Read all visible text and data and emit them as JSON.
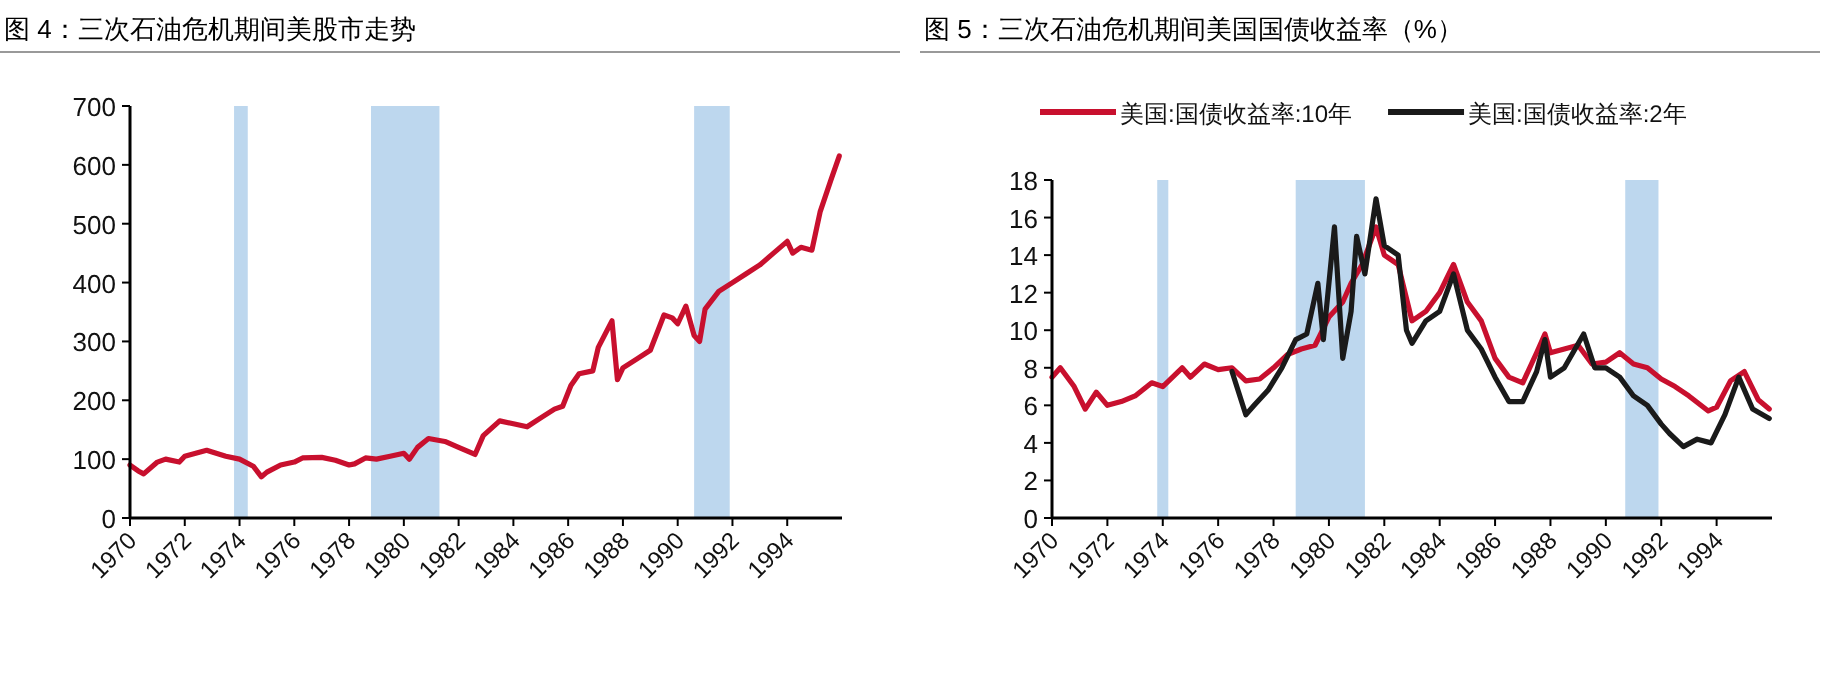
{
  "chart_data": [
    {
      "type": "line",
      "title": "图 4：三次石油危机期间美股市走势",
      "xlim": [
        1970,
        1996
      ],
      "xticks": [
        1970,
        1972,
        1974,
        1976,
        1978,
        1980,
        1982,
        1984,
        1986,
        1988,
        1990,
        1992,
        1994
      ],
      "ylim": [
        0,
        700
      ],
      "yticks": [
        0,
        100,
        200,
        300,
        400,
        500,
        600,
        700
      ],
      "grid": false,
      "legend": false,
      "bands": [
        {
          "axis": "x",
          "from": 1973.8,
          "to": 1974.3,
          "color": "#bdd7ee"
        },
        {
          "axis": "x",
          "from": 1978.8,
          "to": 1981.3,
          "color": "#bdd7ee"
        },
        {
          "axis": "x",
          "from": 1990.6,
          "to": 1991.9,
          "color": "#bdd7ee"
        }
      ],
      "series": [
        {
          "color": "#c8102e",
          "x": [
            1970,
            1970.3,
            1970.5,
            1971,
            1971.3,
            1971.8,
            1972,
            1972.8,
            1973,
            1973.5,
            1974,
            1974.5,
            1974.8,
            1975,
            1975.5,
            1976,
            1976.3,
            1977,
            1977.5,
            1978,
            1978.2,
            1978.6,
            1979,
            1979.5,
            1980,
            1980.2,
            1980.5,
            1980.9,
            1981.5,
            1982,
            1982.6,
            1982.9,
            1983.5,
            1984,
            1984.5,
            1985,
            1985.5,
            1985.8,
            1986.1,
            1986.4,
            1986.9,
            1987.1,
            1987.6,
            1987.8,
            1988,
            1988.5,
            1989,
            1989.5,
            1989.8,
            1990,
            1990.3,
            1990.6,
            1990.8,
            1991,
            1991.5,
            1992,
            1992.5,
            1993,
            1993.5,
            1994,
            1994.2,
            1994.5,
            1994.9,
            1995.2,
            1995.6,
            1995.9
          ],
          "values": [
            90,
            80,
            75,
            95,
            100,
            95,
            105,
            115,
            112,
            105,
            100,
            88,
            70,
            78,
            90,
            95,
            102,
            103,
            98,
            90,
            92,
            102,
            100,
            105,
            110,
            100,
            120,
            135,
            130,
            120,
            108,
            140,
            165,
            160,
            155,
            170,
            185,
            190,
            225,
            245,
            250,
            290,
            335,
            235,
            255,
            270,
            285,
            345,
            340,
            330,
            360,
            310,
            300,
            355,
            385,
            400,
            415,
            430,
            450,
            470,
            450,
            460,
            455,
            520,
            575,
            615
          ]
        }
      ]
    },
    {
      "type": "line",
      "title": "图 5：三次石油危机期间美国国债收益率（%）",
      "xlim": [
        1970,
        1996
      ],
      "xticks": [
        1970,
        1972,
        1974,
        1976,
        1978,
        1980,
        1982,
        1984,
        1986,
        1988,
        1990,
        1992,
        1994
      ],
      "ylim": [
        0,
        18
      ],
      "yticks": [
        0,
        2,
        4,
        6,
        8,
        10,
        12,
        14,
        16,
        18
      ],
      "grid": false,
      "legend": "top",
      "bands": [
        {
          "axis": "x",
          "from": 1973.8,
          "to": 1974.2,
          "color": "#bdd7ee"
        },
        {
          "axis": "x",
          "from": 1978.8,
          "to": 1981.3,
          "color": "#bdd7ee"
        },
        {
          "axis": "x",
          "from": 1990.7,
          "to": 1991.9,
          "color": "#bdd7ee"
        }
      ],
      "series": [
        {
          "name": "美国:国债收益率:10年",
          "color": "#c8102e",
          "x": [
            1970,
            1970.3,
            1970.8,
            1971.2,
            1971.6,
            1972,
            1972.5,
            1973,
            1973.6,
            1974,
            1974.7,
            1975,
            1975.5,
            1976,
            1976.5,
            1977,
            1977.5,
            1978,
            1978.5,
            1979,
            1979.5,
            1980,
            1980.5,
            1980.8,
            1981.2,
            1981.7,
            1982,
            1982.5,
            1983,
            1983.5,
            1984,
            1984.5,
            1985,
            1985.5,
            1986,
            1986.5,
            1987,
            1987.5,
            1987.8,
            1988,
            1988.5,
            1989,
            1989.5,
            1990,
            1990.5,
            1991,
            1991.5,
            1992,
            1992.5,
            1993,
            1993.7,
            1994,
            1994.5,
            1995,
            1995.5,
            1995.9
          ],
          "values": [
            7.5,
            8,
            7,
            5.8,
            6.7,
            6,
            6.2,
            6.5,
            7.2,
            7,
            8,
            7.5,
            8.2,
            7.9,
            8,
            7.3,
            7.4,
            8,
            8.7,
            9,
            9.2,
            10.7,
            11.5,
            12.5,
            13.5,
            15.5,
            14,
            13.5,
            10.5,
            11,
            12,
            13.5,
            11.5,
            10.5,
            8.5,
            7.5,
            7.2,
            8.8,
            9.8,
            8.8,
            9,
            9.2,
            8.2,
            8.3,
            8.8,
            8.2,
            8,
            7.4,
            7,
            6.5,
            5.7,
            5.9,
            7.3,
            7.8,
            6.3,
            5.8
          ]
        },
        {
          "name": "美国:国债收益率:2年",
          "color": "#1a1a1a",
          "x": [
            1976.5,
            1977,
            1977.3,
            1977.8,
            1978.3,
            1978.8,
            1979.2,
            1979.6,
            1979.8,
            1980.2,
            1980.5,
            1980.8,
            1981,
            1981.3,
            1981.7,
            1982,
            1982.5,
            1982.8,
            1983,
            1983.5,
            1984,
            1984.5,
            1985,
            1985.5,
            1986,
            1986.5,
            1987,
            1987.5,
            1987.8,
            1988,
            1988.5,
            1989.2,
            1989.6,
            1990,
            1990.5,
            1991,
            1991.5,
            1992,
            1992.3,
            1992.8,
            1993.3,
            1993.8,
            1994.3,
            1994.8,
            1995.3,
            1995.9
          ],
          "values": [
            7.8,
            5.5,
            6,
            6.8,
            8,
            9.5,
            9.8,
            12.5,
            9.5,
            15.5,
            8.5,
            11,
            15,
            13,
            17,
            14.5,
            14,
            10,
            9.3,
            10.5,
            11,
            13,
            10,
            9,
            7.5,
            6.2,
            6.2,
            7.8,
            9.5,
            7.5,
            8,
            9.8,
            8,
            8,
            7.5,
            6.5,
            6,
            5,
            4.5,
            3.8,
            4.2,
            4,
            5.5,
            7.5,
            5.8,
            5.3
          ]
        }
      ]
    }
  ]
}
